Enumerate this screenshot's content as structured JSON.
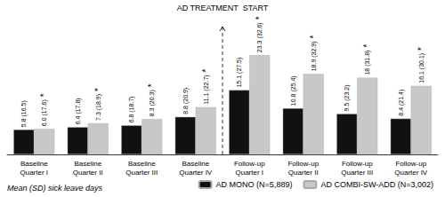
{
  "chart_data": {
    "type": "bar",
    "categories": [
      "Baseline\nQuarter I",
      "Baseline\nQuarter II",
      "Baseline\nQuarter III",
      "Baseline\nQuarter IV",
      "Follow-up\nQuarter I",
      "Follow-up\nQuarter II",
      "Follow-up\nQuarter III",
      "Follow-up\nQuarter IV"
    ],
    "series": [
      {
        "name": "AD MONO (N=5,889)",
        "color": "#111111",
        "values": [
          5.8,
          6.4,
          6.8,
          8.8,
          15.1,
          10.8,
          9.5,
          8.4
        ],
        "value_labels": [
          "5.8 (16.5)",
          "6.4 (17.8)",
          "6.8 (18.7)",
          "8.8 (20.9)",
          "15.1 (27.5)",
          "10.8 (25.4)",
          "9.5 (23.2)",
          "8.4 (21.4)"
        ]
      },
      {
        "name": "AD COMBI-SW-ADD (N=3,002)",
        "color": "#c8c8c8",
        "values": [
          6.0,
          7.3,
          8.3,
          11.1,
          23.3,
          18.9,
          18.0,
          16.1
        ],
        "value_labels": [
          "6.0 (17.6)",
          "7.3 (18.9)",
          "8.3 (20.3)",
          "11.1 (22.7)",
          "23.3 (32.6)",
          "18.9 (32.9)",
          "18 (31.8)",
          "16.1 (30.1)"
        ],
        "significant": [
          true,
          true,
          true,
          true,
          true,
          true,
          true,
          true
        ],
        "significance_label": "*"
      }
    ],
    "ylabel": "Mean (SD) sick leave days",
    "ylim": [
      0,
      30
    ],
    "annotations": [
      {
        "text": "AD TREATMENT  START",
        "x": 3.5,
        "line_style": "dashed"
      }
    ],
    "data_labels": true,
    "tick_labels": "x",
    "grid": false,
    "legend": "bottom"
  }
}
